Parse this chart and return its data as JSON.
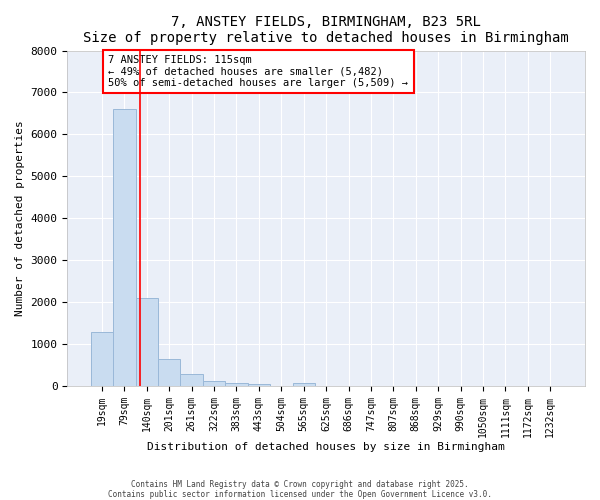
{
  "title": "7, ANSTEY FIELDS, BIRMINGHAM, B23 5RL",
  "subtitle": "Size of property relative to detached houses in Birmingham",
  "xlabel": "Distribution of detached houses by size in Birmingham",
  "ylabel": "Number of detached properties",
  "bar_labels": [
    "19sqm",
    "79sqm",
    "140sqm",
    "201sqm",
    "261sqm",
    "322sqm",
    "383sqm",
    "443sqm",
    "504sqm",
    "565sqm",
    "625sqm",
    "686sqm",
    "747sqm",
    "807sqm",
    "868sqm",
    "929sqm",
    "990sqm",
    "1050sqm",
    "1111sqm",
    "1172sqm",
    "1232sqm"
  ],
  "bar_values": [
    1300,
    6600,
    2100,
    650,
    280,
    120,
    80,
    50,
    0,
    70,
    0,
    0,
    0,
    0,
    0,
    0,
    0,
    0,
    0,
    0,
    0
  ],
  "bar_color": "#c9dcf0",
  "bar_edge_color": "#9ab8d8",
  "vline_x_pos": 1.7,
  "vline_color": "red",
  "annotation_text": "7 ANSTEY FIELDS: 115sqm\n← 49% of detached houses are smaller (5,482)\n50% of semi-detached houses are larger (5,509) →",
  "annotation_box_color": "white",
  "annotation_box_edge": "red",
  "ylim": [
    0,
    8000
  ],
  "bg_color": "#eaeff8",
  "grid_color": "white",
  "footer1": "Contains HM Land Registry data © Crown copyright and database right 2025.",
  "footer2": "Contains public sector information licensed under the Open Government Licence v3.0."
}
